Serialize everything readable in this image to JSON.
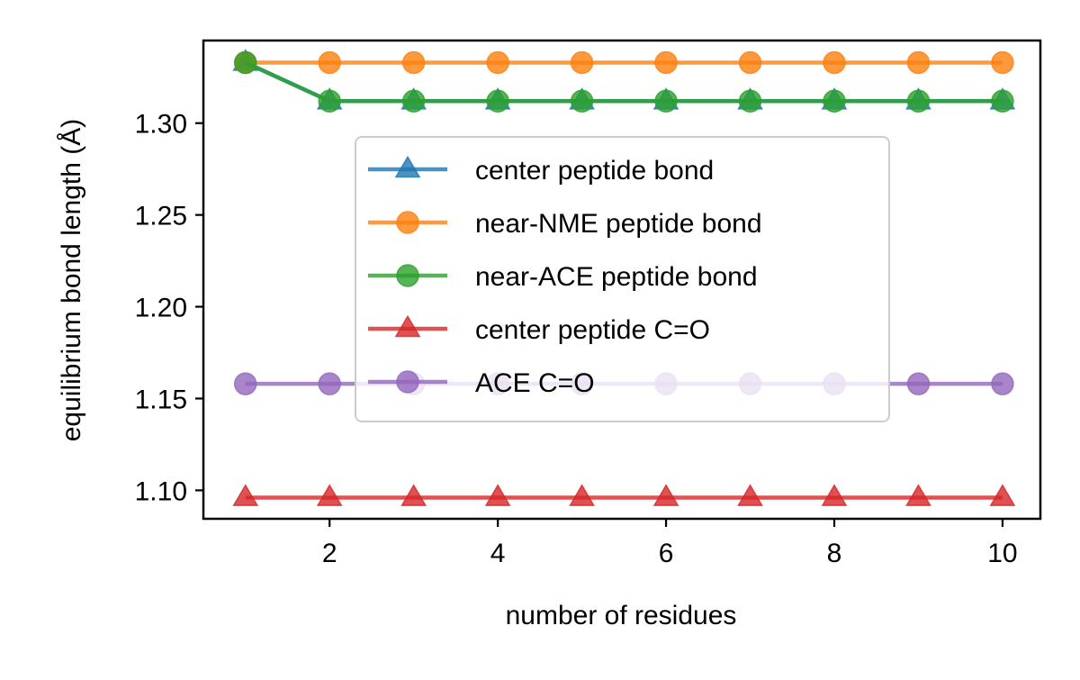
{
  "chart_data": {
    "type": "line",
    "title": "",
    "xlabel": "number of residues",
    "ylabel": "equilibrium bond length (Å)",
    "xlim": [
      0.5,
      10.45
    ],
    "ylim": [
      1.0845,
      1.345
    ],
    "x_ticks": [
      2,
      4,
      6,
      8,
      10
    ],
    "x_tick_labels": [
      "2",
      "4",
      "6",
      "8",
      "10"
    ],
    "y_ticks": [
      1.1,
      1.15,
      1.2,
      1.25,
      1.3
    ],
    "y_tick_labels": [
      "1.10",
      "1.15",
      "1.20",
      "1.25",
      "1.30"
    ],
    "grid": false,
    "legend_position": "center",
    "x": [
      1,
      2,
      3,
      4,
      5,
      6,
      7,
      8,
      9,
      10
    ],
    "series": [
      {
        "name": "center peptide bond",
        "color": "#1f77b4",
        "marker": "triangle",
        "values": [
          1.333,
          1.312,
          1.312,
          1.312,
          1.312,
          1.312,
          1.312,
          1.312,
          1.312,
          1.312
        ]
      },
      {
        "name": "near-NME peptide bond",
        "color": "#ff7f0e",
        "marker": "circle",
        "values": [
          1.333,
          1.333,
          1.333,
          1.333,
          1.333,
          1.333,
          1.333,
          1.333,
          1.333,
          1.333
        ]
      },
      {
        "name": "near-ACE peptide bond",
        "color": "#2ca02c",
        "marker": "circle",
        "values": [
          1.333,
          1.312,
          1.312,
          1.312,
          1.312,
          1.312,
          1.312,
          1.312,
          1.312,
          1.312
        ]
      },
      {
        "name": "center peptide C=O",
        "color": "#d62728",
        "marker": "triangle",
        "values": [
          1.096,
          1.096,
          1.096,
          1.096,
          1.096,
          1.096,
          1.096,
          1.096,
          1.096,
          1.096
        ]
      },
      {
        "name": "ACE C=O",
        "color": "#9467bd",
        "marker": "circle",
        "values": [
          1.158,
          1.158,
          1.158,
          1.158,
          1.158,
          1.158,
          1.158,
          1.158,
          1.158,
          1.158
        ]
      }
    ]
  }
}
